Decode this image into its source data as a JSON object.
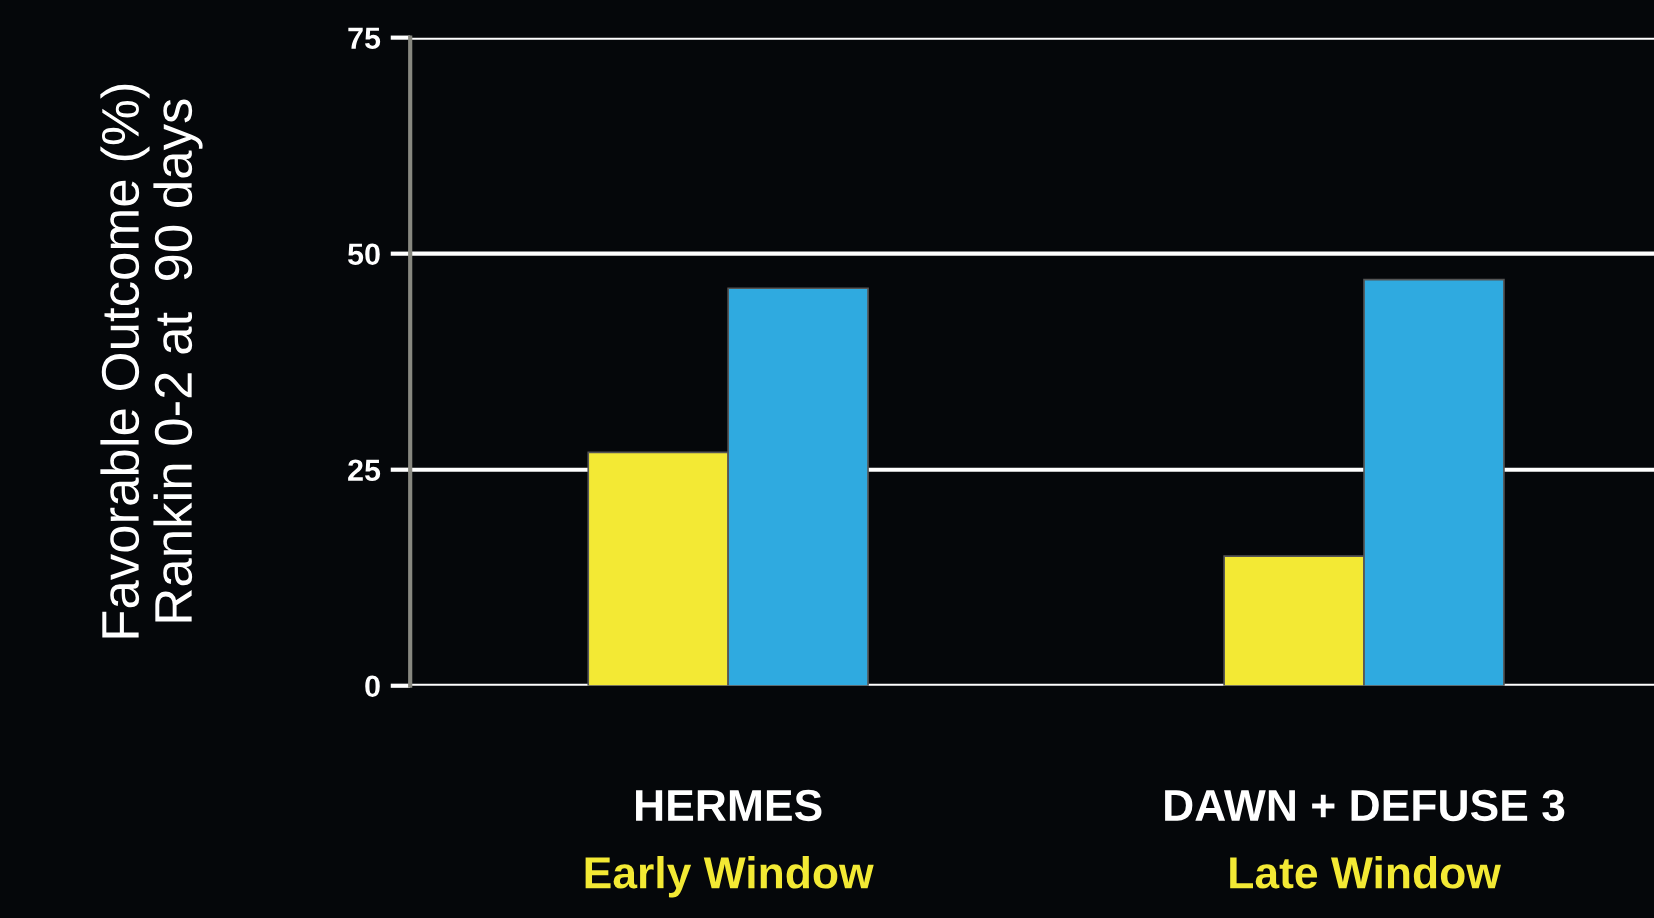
{
  "chart_data": {
    "type": "bar",
    "ylabel": "Favorable Outcome (%)\nRankin 0-2 at  90 days",
    "categories": [
      "HERMES",
      "DAWN + DEFUSE 3"
    ],
    "series": [
      {
        "color": "#f3e934",
        "values": [
          27,
          15
        ]
      },
      {
        "color": "#2faae0",
        "values": [
          46,
          47
        ]
      }
    ],
    "annotations": [
      "Early Window",
      "Late Window"
    ],
    "ylim": [
      0,
      75
    ],
    "yticks": [
      0,
      25,
      50,
      75
    ],
    "grid": "y",
    "legend": false
  }
}
